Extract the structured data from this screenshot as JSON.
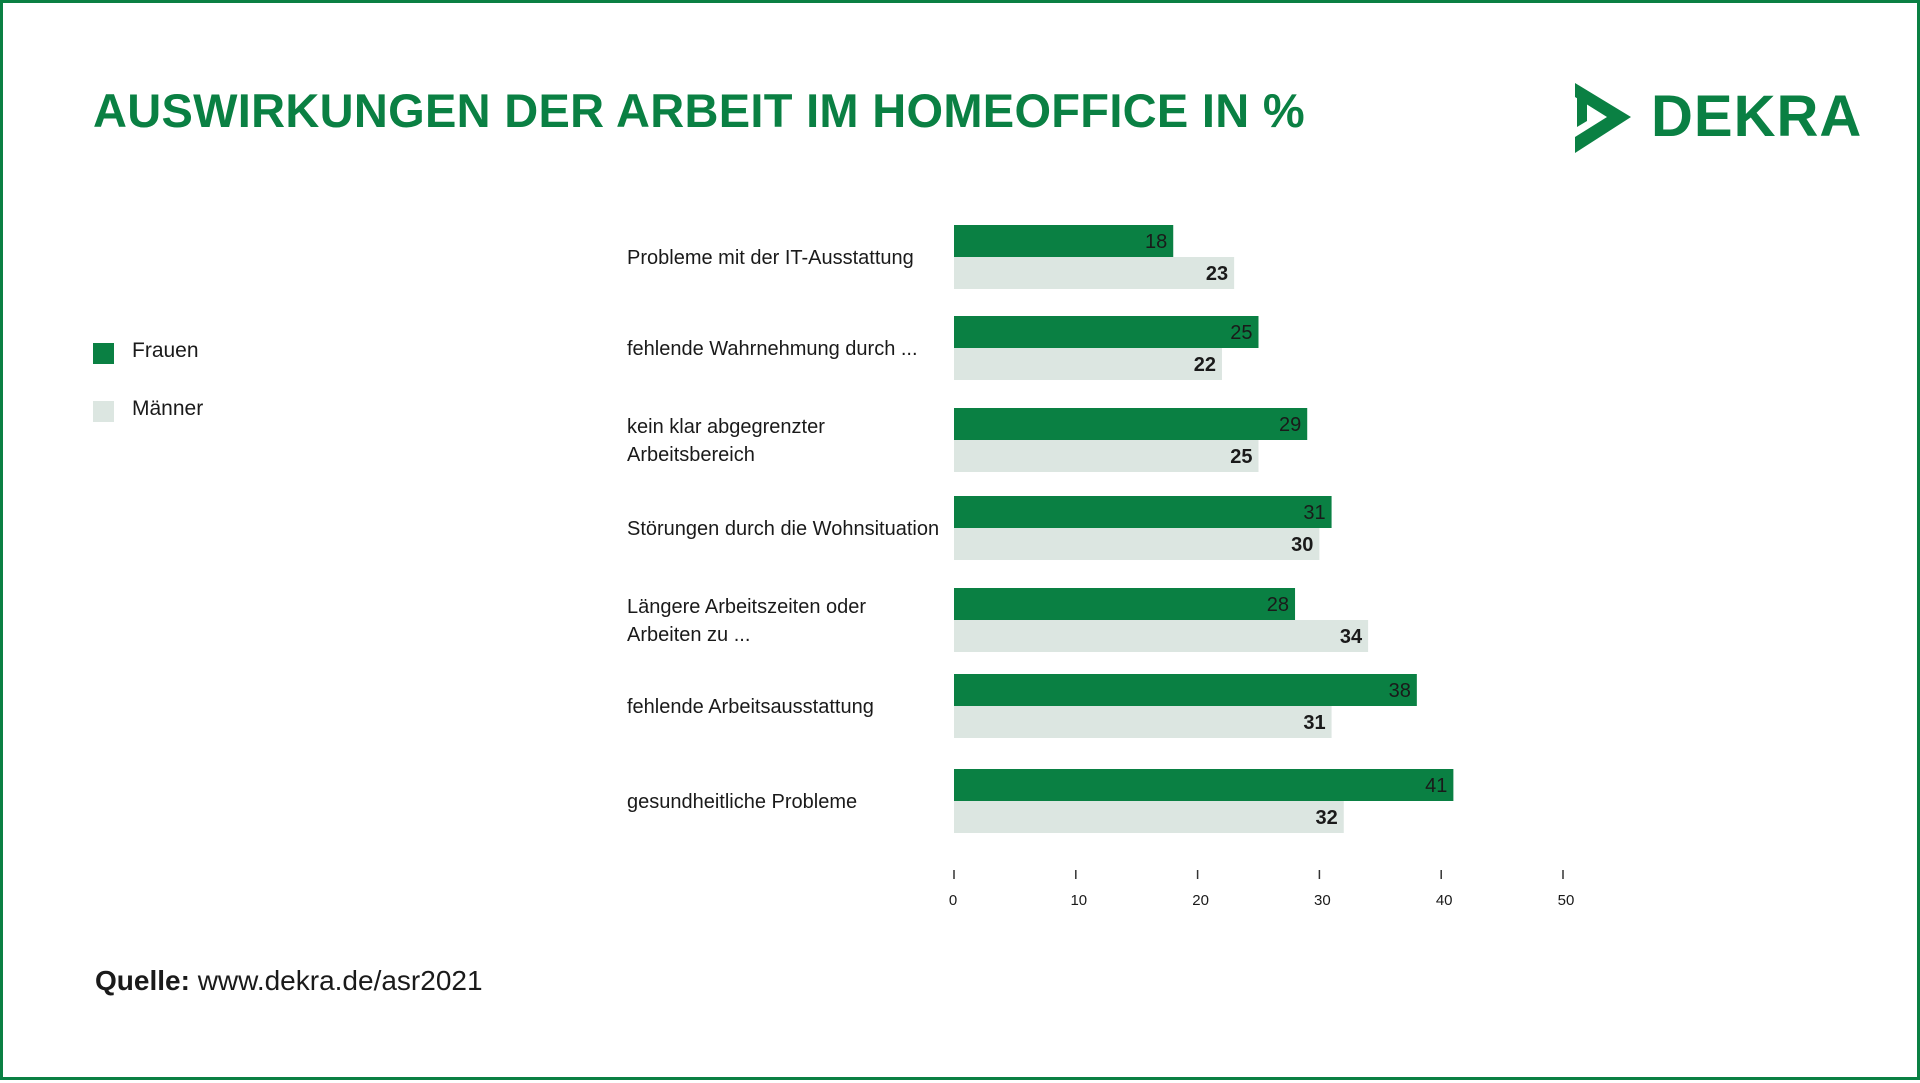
{
  "title": "AUSWIRKUNGEN DER ARBEIT IM HOMEOFFICE IN %",
  "logo": {
    "text": "DEKRA"
  },
  "colors": {
    "frauen": "#0a8043",
    "maenner": "#dce6e1",
    "brand": "#0a8043"
  },
  "legend": [
    {
      "label": "Frauen",
      "color": "#0a8043"
    },
    {
      "label": "Männer",
      "color": "#dce6e1"
    }
  ],
  "source": {
    "label": "Quelle:",
    "url": "www.dekra.de/asr2021"
  },
  "chart_data": {
    "type": "bar",
    "orientation": "horizontal",
    "title": "AUSWIRKUNGEN DER ARBEIT IM HOMEOFFICE IN %",
    "categories": [
      [
        "Probleme mit der IT-Ausstattung"
      ],
      [
        "fehlende Wahrnehmung durch ..."
      ],
      [
        "kein klar abgegrenzter",
        "Arbeitsbereich"
      ],
      [
        "Störungen durch die Wohnsituation"
      ],
      [
        "Längere Arbeitszeiten oder",
        "Arbeiten zu ..."
      ],
      [
        "fehlende Arbeitsausstattung"
      ],
      [
        "gesundheitliche Probleme"
      ]
    ],
    "series": [
      {
        "name": "Frauen",
        "values": [
          18,
          25,
          29,
          31,
          28,
          38,
          41
        ]
      },
      {
        "name": "Männer",
        "values": [
          23,
          22,
          25,
          30,
          34,
          31,
          32
        ]
      }
    ],
    "xlim": [
      0,
      50
    ],
    "ticks": [
      0,
      10,
      20,
      30,
      40,
      50
    ],
    "grid": false,
    "legend_position": "left"
  }
}
